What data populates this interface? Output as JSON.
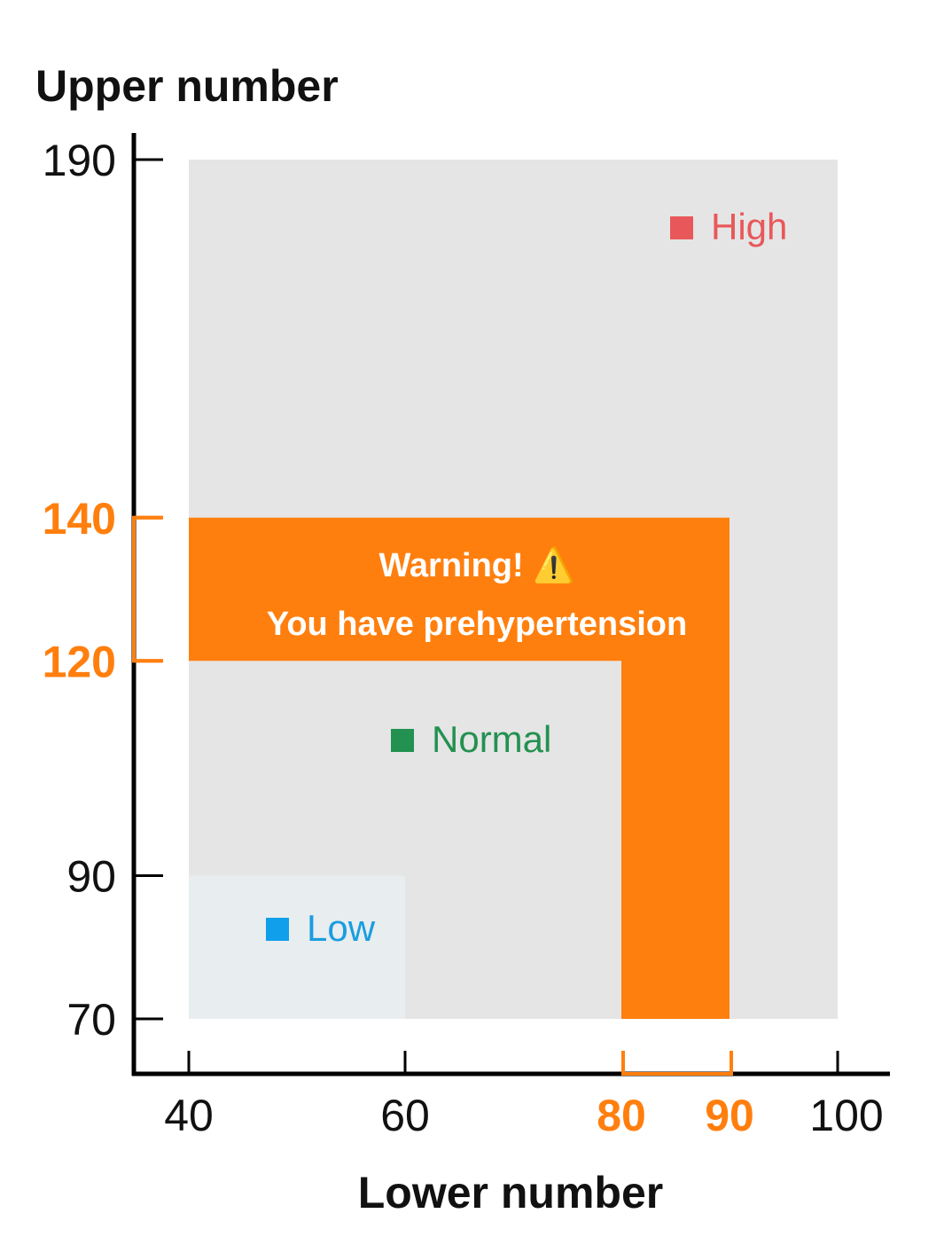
{
  "chart_data": {
    "type": "area",
    "ylabel": "Upper number",
    "xlabel": "Lower number",
    "xlim": [
      40,
      100
    ],
    "ylim": [
      70,
      190
    ],
    "x_ticks": [
      {
        "value": 40,
        "label": "40",
        "highlight": false
      },
      {
        "value": 60,
        "label": "60",
        "highlight": false
      },
      {
        "value": 80,
        "label": "80",
        "highlight": true
      },
      {
        "value": 90,
        "label": "90",
        "highlight": true
      },
      {
        "value": 100,
        "label": "100",
        "highlight": false
      }
    ],
    "y_ticks": [
      {
        "value": 190,
        "label": "190",
        "highlight": false
      },
      {
        "value": 140,
        "label": "140",
        "highlight": true
      },
      {
        "value": 120,
        "label": "120",
        "highlight": true
      },
      {
        "value": 90,
        "label": "90",
        "highlight": false
      },
      {
        "value": 70,
        "label": "70",
        "highlight": false
      }
    ],
    "zones": [
      {
        "name": "High",
        "x": [
          40,
          100
        ],
        "y": [
          70,
          190
        ],
        "color": "#E5E5E5",
        "label_color": "#E8585A",
        "marker_color": "#E8585A"
      },
      {
        "name": "Normal",
        "x": [
          40,
          80
        ],
        "y": [
          70,
          120
        ],
        "color": "#E5E5E5",
        "label_color": "#239150",
        "marker_color": "#239150"
      },
      {
        "name": "Low",
        "x": [
          40,
          60
        ],
        "y": [
          70,
          90
        ],
        "color": "#E8EDF0",
        "label_color": "#1A9DE0",
        "marker_color": "#109FEA"
      }
    ],
    "highlight": {
      "color": "#FF7F0E",
      "x_range": [
        80,
        90
      ],
      "y_range": [
        120,
        140
      ],
      "line1": "Warning! ⚠️",
      "line2": "You have prehypertension"
    }
  }
}
